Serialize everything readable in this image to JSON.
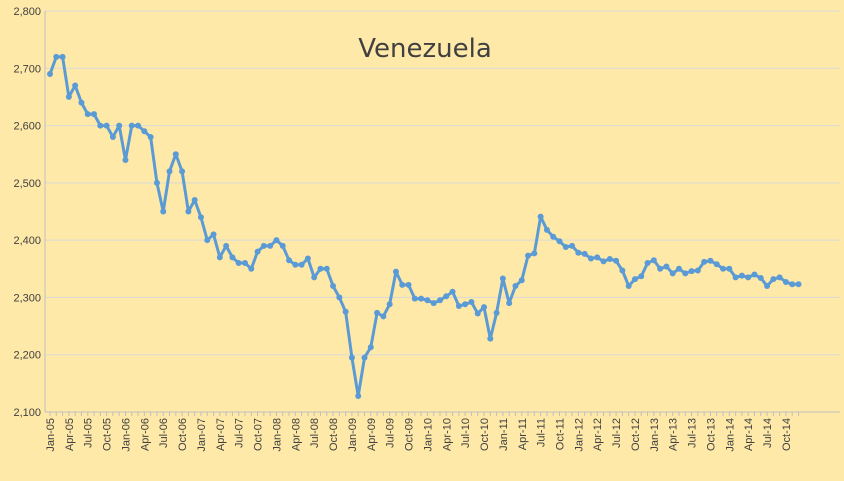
{
  "chart_data": {
    "type": "line",
    "title": "Venezuela",
    "xlabel": "",
    "ylabel": "",
    "ylim": [
      2100,
      2800
    ],
    "y_ticks": [
      2100,
      2200,
      2300,
      2400,
      2500,
      2600,
      2700,
      2800
    ],
    "y_tick_labels": [
      "2,100",
      "2,200",
      "2,300",
      "2,400",
      "2,500",
      "2,600",
      "2,700",
      "2,800"
    ],
    "x_tick_labels": [
      "Jan-05",
      "Apr-05",
      "Jul-05",
      "Oct-05",
      "Jan-06",
      "Apr-06",
      "Jul-06",
      "Oct-06",
      "Jan-07",
      "Apr-07",
      "Jul-07",
      "Oct-07",
      "Jan-08",
      "Apr-08",
      "Jul-08",
      "Oct-08",
      "Jan-09",
      "Apr-09",
      "Jul-09",
      "Oct-09",
      "Jan-10",
      "Apr-10",
      "Jul-10",
      "Oct-10",
      "Jan-11",
      "Apr-11",
      "Jul-11",
      "Oct-11",
      "Jan-12",
      "Apr-12",
      "Jul-12",
      "Oct-12",
      "Jan-13",
      "Apr-13",
      "Jul-13",
      "Oct-13",
      "Jan-14",
      "Apr-14",
      "Jul-14",
      "Oct-14"
    ],
    "x_start": "Jan-05",
    "grid": true,
    "legend": "none",
    "series_color": "#5b9bd5",
    "series": [
      {
        "values": [
          2690,
          2720,
          2720,
          2650,
          2670,
          2640,
          2620,
          2620,
          2600,
          2600,
          2580,
          2600,
          2540,
          2600,
          2600,
          2590,
          2580,
          2500,
          2450,
          2520,
          2550,
          2520,
          2450,
          2470,
          2440,
          2400,
          2410,
          2370,
          2390,
          2370,
          2360,
          2360,
          2350,
          2380,
          2390,
          2390,
          2400,
          2390,
          2365,
          2357,
          2357,
          2368,
          2335,
          2350,
          2350,
          2320,
          2300,
          2275,
          2195,
          2128,
          2195,
          2213,
          2273,
          2267,
          2288,
          2345,
          2322,
          2322,
          2298,
          2298,
          2295,
          2290,
          2295,
          2302,
          2310,
          2285,
          2288,
          2292,
          2272,
          2283,
          2228,
          2273,
          2333,
          2290,
          2320,
          2330,
          2373,
          2377,
          2441,
          2418,
          2406,
          2398,
          2388,
          2390,
          2378,
          2376,
          2368,
          2370,
          2363,
          2367,
          2364,
          2347,
          2320,
          2332,
          2337,
          2360,
          2365,
          2350,
          2354,
          2342,
          2350,
          2342,
          2346,
          2347,
          2362,
          2364,
          2358,
          2350,
          2350,
          2335,
          2338,
          2335,
          2340,
          2334,
          2320,
          2332,
          2335,
          2327,
          2323,
          2323
        ]
      }
    ]
  }
}
